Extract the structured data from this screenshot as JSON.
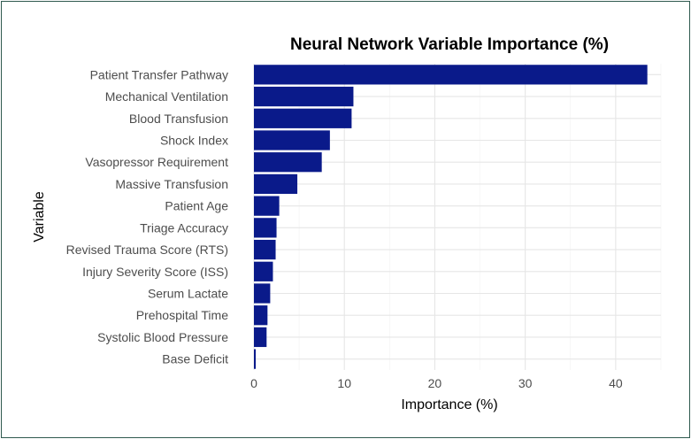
{
  "chart_data": {
    "type": "bar",
    "orientation": "horizontal",
    "title": "Neural Network Variable Importance (%)",
    "xlabel": "Importance (%)",
    "ylabel": "Variable",
    "categories": [
      "Patient Transfer Pathway",
      "Mechanical Ventilation",
      "Blood Transfusion",
      "Shock Index",
      "Vasopressor Requirement",
      "Massive Transfusion",
      "Patient Age",
      "Triage Accuracy",
      "Revised Trauma Score (RTS)",
      "Injury Severity Score (ISS)",
      "Serum Lactate",
      "Prehospital Time",
      "Systolic Blood Pressure",
      "Base Deficit"
    ],
    "values": [
      43.5,
      11.0,
      10.8,
      8.4,
      7.5,
      4.8,
      2.8,
      2.5,
      2.4,
      2.1,
      1.8,
      1.5,
      1.4,
      0.2
    ],
    "xlim": [
      0,
      45
    ],
    "xticks": [
      0,
      10,
      20,
      30,
      40
    ],
    "bar_color": "#0a1a8a",
    "grid": true
  }
}
